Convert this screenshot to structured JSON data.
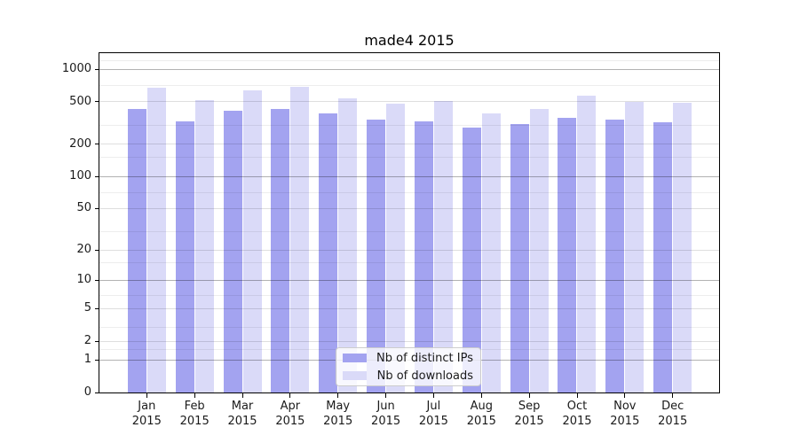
{
  "title": "made4 2015",
  "year_label": "2015",
  "legend": {
    "items": [
      {
        "label": "Nb of distinct IPs",
        "color": "#a3a3f0"
      },
      {
        "label": "Nb of downloads",
        "color": "#dadaf8"
      }
    ]
  },
  "chart_data": {
    "type": "bar",
    "title": "made4 2015",
    "categories": [
      "Jan 2015",
      "Feb 2015",
      "Mar 2015",
      "Apr 2015",
      "May 2015",
      "Jun 2015",
      "Jul 2015",
      "Aug 2015",
      "Sep 2015",
      "Oct 2015",
      "Nov 2015",
      "Dec 2015"
    ],
    "month_labels": [
      "Jan",
      "Feb",
      "Mar",
      "Apr",
      "May",
      "Jun",
      "Jul",
      "Aug",
      "Sep",
      "Oct",
      "Nov",
      "Dec"
    ],
    "series": [
      {
        "name": "Nb of distinct IPs",
        "color": "#a3a3f0",
        "values": [
          430,
          325,
          410,
          430,
          385,
          340,
          325,
          285,
          310,
          355,
          340,
          320
        ]
      },
      {
        "name": "Nb of downloads",
        "color": "#dadaf8",
        "values": [
          670,
          515,
          630,
          680,
          540,
          475,
          505,
          390,
          430,
          570,
          495,
          490
        ]
      }
    ],
    "yscale": "log1p",
    "y_ticks": [
      0,
      1,
      2,
      5,
      10,
      20,
      50,
      100,
      200,
      500,
      1000
    ],
    "y_minor_gridlines": [
      1.5,
      3,
      7,
      15,
      30,
      70,
      150,
      300,
      700,
      1200
    ],
    "ylim": [
      0,
      1400
    ],
    "xlabel": "",
    "ylabel": "",
    "grid": true,
    "legend_position": "lower center"
  },
  "colors": {
    "bar_ips": "#a3a3f0",
    "bar_downloads": "#dadaf8",
    "grid_major": "rgba(0,0,0,0.30)",
    "grid_labeled": "rgba(0,0,0,0.13)",
    "grid_minor": "rgba(0,0,0,0.07)",
    "spine": "#000000",
    "legend_bg": "rgba(255,255,255,0.8)",
    "legend_border": "#cccccc"
  }
}
